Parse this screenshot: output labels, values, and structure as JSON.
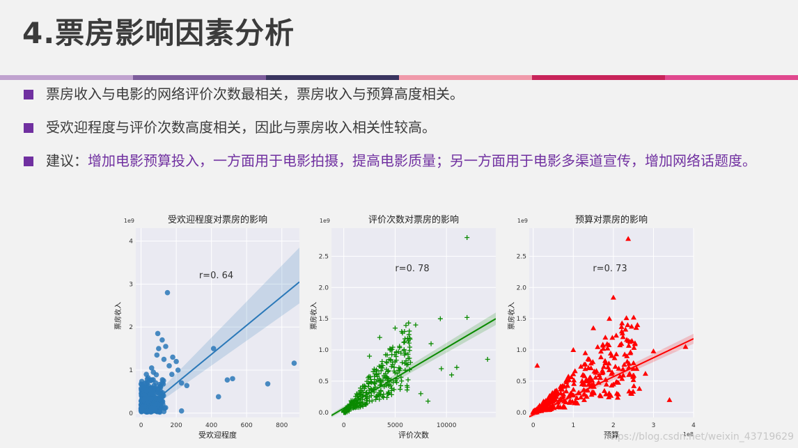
{
  "slide": {
    "title": "4.票房影响因素分析",
    "stripe_colors": [
      "#c0a3cf",
      "#7d5d9c",
      "#3a3560",
      "#f09aaa",
      "#c8245a",
      "#e0488e"
    ],
    "bullets": [
      {
        "text": "票房收入与电影的网络评价次数最相关，票房收入与预算高度相关。"
      },
      {
        "text": "受欢迎程度与评价次数高度相关，因此与票房收入相关性较高。"
      },
      {
        "prefix": "建议：",
        "text": "增加电影预算投入，一方面用于电影拍摄，提高电影质量；另一方面用于电影多渠道宣传，增加网络话题度。"
      }
    ],
    "watermark": "https://blog.csdn.net/weixin_43719629"
  },
  "chart_data": [
    {
      "type": "scatter",
      "title": "受欢迎程度对票房的影响",
      "xlabel": "受欢迎程度",
      "ylabel": "票房收入",
      "y_scale_label": "1e9",
      "annotation": "r=0. 64",
      "color": "#2a78b8",
      "marker": "circle",
      "xlim": [
        -30,
        900
      ],
      "ylim": [
        -0.1,
        4.3
      ],
      "xticks": [
        0,
        200,
        400,
        600,
        800
      ],
      "yticks": [
        0,
        1,
        2,
        3,
        4
      ],
      "points": [
        [
          150,
          2.8
        ],
        [
          95,
          1.85
        ],
        [
          412,
          1.5
        ],
        [
          870,
          1.16
        ],
        [
          520,
          0.8
        ],
        [
          490,
          0.77
        ],
        [
          720,
          0.68
        ],
        [
          230,
          0.7
        ],
        [
          260,
          0.64
        ],
        [
          440,
          0.38
        ],
        [
          120,
          1.7
        ],
        [
          140,
          1.55
        ],
        [
          180,
          1.3
        ],
        [
          200,
          1.2
        ],
        [
          160,
          1.1
        ],
        [
          90,
          1.35
        ],
        [
          60,
          1.05
        ],
        [
          210,
          1.0
        ],
        [
          175,
          0.9
        ],
        [
          230,
          0.05
        ],
        [
          30,
          0.9
        ],
        [
          70,
          0.95
        ],
        [
          100,
          1.5
        ],
        [
          130,
          1.25
        ]
      ],
      "regression": {
        "x": [
          0,
          900
        ],
        "y": [
          0.02,
          3.05
        ],
        "ci_low": [
          -0.05,
          2.55
        ],
        "ci_high": [
          0.08,
          3.85
        ]
      }
    },
    {
      "type": "scatter",
      "title": "评价次数对票房的影响",
      "xlabel": "评价次数",
      "ylabel": "票房收入",
      "y_scale_label": "1e9",
      "annotation": "r=0. 78",
      "color": "#0a8a00",
      "marker": "plus",
      "xlim": [
        -1200,
        14800
      ],
      "ylim": [
        -0.08,
        2.95
      ],
      "xticks": [
        0,
        5000,
        10000
      ],
      "yticks": [
        0.0,
        0.5,
        1.0,
        1.5,
        2.0,
        2.5
      ],
      "points": [
        [
          12000,
          2.8
        ],
        [
          12000,
          1.52
        ],
        [
          9400,
          1.5
        ],
        [
          7000,
          1.4
        ],
        [
          5000,
          1.35
        ],
        [
          8500,
          1.1
        ],
        [
          14000,
          0.85
        ],
        [
          11000,
          0.72
        ],
        [
          9500,
          0.7
        ],
        [
          10500,
          0.6
        ],
        [
          7500,
          0.3
        ],
        [
          8200,
          0.18
        ],
        [
          6000,
          0.95
        ],
        [
          4500,
          1.0
        ],
        [
          3500,
          1.2
        ],
        [
          6500,
          0.8
        ],
        [
          5500,
          0.7
        ],
        [
          2500,
          0.9
        ]
      ],
      "regression": {
        "x": [
          -1200,
          14800
        ],
        "y": [
          -0.05,
          1.5
        ],
        "ci_low": [
          -0.08,
          1.4
        ],
        "ci_high": [
          -0.02,
          1.6
        ]
      }
    },
    {
      "type": "scatter",
      "title": "预算对票房的影响",
      "xlabel": "预算",
      "ylabel": "票房收入",
      "y_scale_label": "1e9",
      "x_scale_label": "1e8",
      "annotation": "r=0. 73",
      "color": "#ff0000",
      "marker": "triangle",
      "xlim": [
        -0.1,
        4.0
      ],
      "ylim": [
        -0.08,
        2.95
      ],
      "xticks": [
        0,
        1,
        2,
        3,
        4
      ],
      "yticks": [
        0.0,
        0.5,
        1.0,
        1.5,
        2.0,
        2.5
      ],
      "points": [
        [
          2.37,
          2.78
        ],
        [
          2.0,
          1.84
        ],
        [
          1.5,
          1.35
        ],
        [
          1.9,
          1.5
        ],
        [
          2.6,
          1.4
        ],
        [
          3.8,
          1.05
        ],
        [
          3.0,
          0.98
        ],
        [
          2.8,
          0.62
        ],
        [
          2.5,
          0.52
        ],
        [
          2.5,
          0.7
        ],
        [
          2.2,
          1.1
        ],
        [
          1.8,
          1.2
        ],
        [
          1.0,
          1.0
        ],
        [
          1.3,
          0.95
        ],
        [
          0.1,
          0.75
        ],
        [
          2.65,
          0.38
        ],
        [
          3.4,
          0.2
        ],
        [
          2.0,
          0.45
        ]
      ],
      "regression": {
        "x": [
          -0.1,
          4.0
        ],
        "y": [
          -0.07,
          1.18
        ],
        "ci_low": [
          -0.1,
          1.1
        ],
        "ci_high": [
          -0.04,
          1.26
        ]
      }
    }
  ]
}
